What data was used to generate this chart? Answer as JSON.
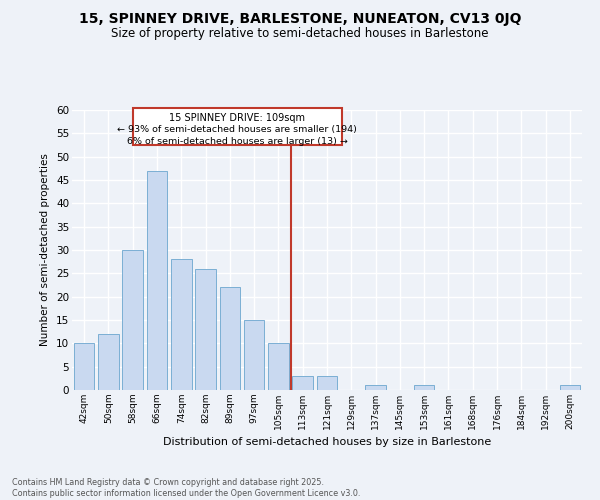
{
  "title1": "15, SPINNEY DRIVE, BARLESTONE, NUNEATON, CV13 0JQ",
  "title2": "Size of property relative to semi-detached houses in Barlestone",
  "xlabel": "Distribution of semi-detached houses by size in Barlestone",
  "ylabel": "Number of semi-detached properties",
  "categories": [
    "42sqm",
    "50sqm",
    "58sqm",
    "66sqm",
    "74sqm",
    "82sqm",
    "89sqm",
    "97sqm",
    "105sqm",
    "113sqm",
    "121sqm",
    "129sqm",
    "137sqm",
    "145sqm",
    "153sqm",
    "161sqm",
    "168sqm",
    "176sqm",
    "184sqm",
    "192sqm",
    "200sqm"
  ],
  "values": [
    10,
    12,
    30,
    47,
    28,
    26,
    22,
    15,
    10,
    3,
    3,
    0,
    1,
    0,
    1,
    0,
    0,
    0,
    0,
    0,
    1
  ],
  "bar_color": "#c9d9f0",
  "bar_edge_color": "#7bafd4",
  "vline_x": 8.5,
  "vline_color": "#c0392b",
  "annotation_title": "15 SPINNEY DRIVE: 109sqm",
  "annotation_line1": "← 93% of semi-detached houses are smaller (194)",
  "annotation_line2": "6% of semi-detached houses are larger (13) →",
  "annotation_box_color": "#c0392b",
  "ylim": [
    0,
    60
  ],
  "yticks": [
    0,
    5,
    10,
    15,
    20,
    25,
    30,
    35,
    40,
    45,
    50,
    55,
    60
  ],
  "footer_line1": "Contains HM Land Registry data © Crown copyright and database right 2025.",
  "footer_line2": "Contains public sector information licensed under the Open Government Licence v3.0.",
  "bg_color": "#eef2f8",
  "grid_color": "#ffffff",
  "title1_fontsize": 10,
  "title2_fontsize": 8.5
}
